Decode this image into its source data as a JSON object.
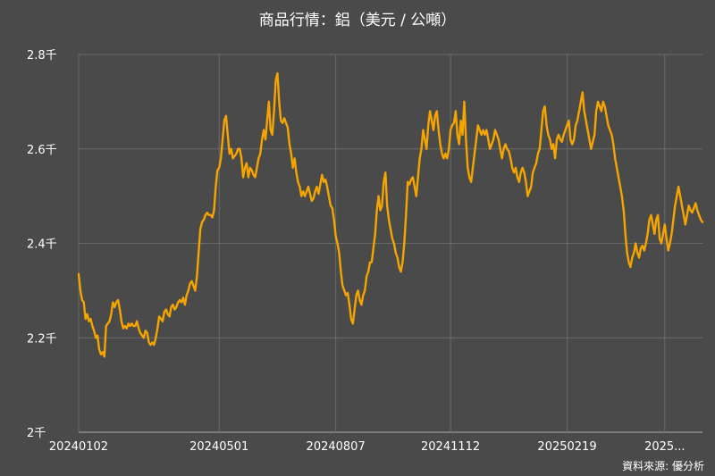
{
  "chart_data": {
    "type": "line",
    "title": "商品行情：鋁（美元 / 公噸）",
    "xlabel": "",
    "ylabel": "",
    "ylim": [
      2000,
      2800
    ],
    "y_ticks": [
      2000,
      2200,
      2400,
      2600,
      2800
    ],
    "y_tick_labels": [
      "2千",
      "2.2千",
      "2.4千",
      "2.6千",
      "2.8千"
    ],
    "x_tick_labels": [
      "20240102",
      "20240501",
      "20240807",
      "20241112",
      "20250219",
      "2025..."
    ],
    "x_tick_index": [
      0,
      82,
      150,
      217,
      285,
      342
    ],
    "grid": true,
    "colors": {
      "line": "#f5a400",
      "background": "#4a4a4a",
      "grid": "#6a6a6a"
    },
    "values": [
      2335,
      2300,
      2280,
      2275,
      2240,
      2250,
      2235,
      2240,
      2225,
      2215,
      2200,
      2205,
      2175,
      2165,
      2170,
      2160,
      2225,
      2230,
      2235,
      2250,
      2275,
      2265,
      2275,
      2280,
      2260,
      2235,
      2220,
      2225,
      2220,
      2230,
      2225,
      2230,
      2225,
      2225,
      2235,
      2220,
      2210,
      2205,
      2200,
      2215,
      2210,
      2190,
      2185,
      2190,
      2185,
      2200,
      2220,
      2245,
      2240,
      2235,
      2255,
      2260,
      2250,
      2245,
      2265,
      2270,
      2260,
      2265,
      2275,
      2280,
      2275,
      2285,
      2270,
      2290,
      2300,
      2315,
      2320,
      2310,
      2300,
      2330,
      2380,
      2430,
      2445,
      2450,
      2460,
      2465,
      2460,
      2460,
      2455,
      2470,
      2520,
      2555,
      2560,
      2580,
      2620,
      2660,
      2670,
      2630,
      2590,
      2600,
      2580,
      2585,
      2590,
      2600,
      2600,
      2580,
      2540,
      2560,
      2570,
      2540,
      2560,
      2555,
      2545,
      2540,
      2560,
      2580,
      2590,
      2620,
      2640,
      2620,
      2660,
      2700,
      2640,
      2630,
      2680,
      2745,
      2760,
      2700,
      2660,
      2655,
      2665,
      2655,
      2645,
      2610,
      2590,
      2560,
      2580,
      2550,
      2530,
      2520,
      2500,
      2510,
      2500,
      2510,
      2520,
      2505,
      2490,
      2495,
      2510,
      2520,
      2505,
      2525,
      2545,
      2530,
      2535,
      2520,
      2500,
      2480,
      2475,
      2450,
      2415,
      2400,
      2380,
      2340,
      2310,
      2300,
      2290,
      2295,
      2270,
      2240,
      2230,
      2260,
      2290,
      2300,
      2280,
      2270,
      2290,
      2300,
      2330,
      2340,
      2360,
      2360,
      2390,
      2420,
      2470,
      2500,
      2470,
      2480,
      2530,
      2550,
      2480,
      2450,
      2430,
      2410,
      2400,
      2380,
      2370,
      2350,
      2340,
      2360,
      2400,
      2460,
      2530,
      2525,
      2535,
      2540,
      2520,
      2500,
      2540,
      2580,
      2600,
      2640,
      2620,
      2600,
      2650,
      2680,
      2660,
      2640,
      2670,
      2680,
      2640,
      2610,
      2590,
      2580,
      2590,
      2580,
      2600,
      2640,
      2650,
      2655,
      2680,
      2630,
      2610,
      2660,
      2630,
      2700,
      2620,
      2560,
      2540,
      2530,
      2560,
      2590,
      2620,
      2650,
      2640,
      2630,
      2640,
      2630,
      2640,
      2620,
      2600,
      2610,
      2620,
      2640,
      2630,
      2620,
      2600,
      2580,
      2600,
      2610,
      2600,
      2595,
      2580,
      2560,
      2550,
      2560,
      2540,
      2530,
      2550,
      2560,
      2550,
      2530,
      2500,
      2510,
      2520,
      2550,
      2560,
      2570,
      2590,
      2600,
      2640,
      2680,
      2690,
      2650,
      2630,
      2620,
      2600,
      2610,
      2580,
      2620,
      2630,
      2620,
      2615,
      2630,
      2640,
      2650,
      2660,
      2620,
      2610,
      2620,
      2650,
      2660,
      2680,
      2700,
      2720,
      2680,
      2660,
      2640,
      2620,
      2600,
      2615,
      2630,
      2680,
      2700,
      2690,
      2680,
      2700,
      2690,
      2670,
      2650,
      2640,
      2630,
      2610,
      2580,
      2560,
      2540,
      2520,
      2500,
      2470,
      2420,
      2380,
      2360,
      2350,
      2370,
      2380,
      2400,
      2380,
      2370,
      2390,
      2395,
      2385,
      2400,
      2420,
      2450,
      2460,
      2440,
      2420,
      2450,
      2460,
      2410,
      2400,
      2420,
      2440,
      2410,
      2385,
      2400,
      2420,
      2450,
      2480,
      2500,
      2520,
      2500,
      2480,
      2460,
      2440,
      2460,
      2480,
      2470,
      2465,
      2475,
      2485,
      2470,
      2460,
      2450,
      2445
    ]
  },
  "source_note": "資料來源: 優分析"
}
